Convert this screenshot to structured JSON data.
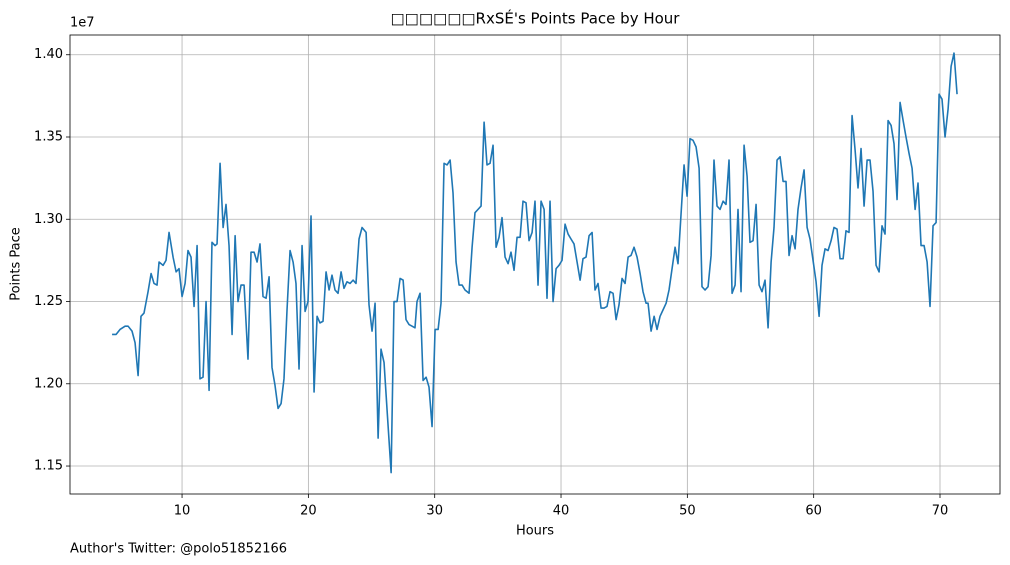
{
  "chart_data": {
    "type": "line",
    "title": "□□□□□□RxSÉ's Points Pace by Hour",
    "x_label": "Hours",
    "y_label": "Points Pace",
    "y_offset_label": "1e7",
    "footer": "Author's Twitter: @polo51852166",
    "grid": true,
    "color": "#1f77b4",
    "xlim": [
      1.13,
      74.75
    ],
    "ylim": [
      1.133,
      1.412
    ],
    "xticks": [
      10,
      20,
      30,
      40,
      50,
      60,
      70
    ],
    "yticks": [
      {
        "value": 1.15,
        "label": "1.15"
      },
      {
        "value": 1.2,
        "label": "1.20"
      },
      {
        "value": 1.25,
        "label": "1.25"
      },
      {
        "value": 1.3,
        "label": "1.30"
      },
      {
        "value": 1.35,
        "label": "1.35"
      },
      {
        "value": 1.4,
        "label": "1.40"
      }
    ],
    "x": [
      4.46,
      4.78,
      5.09,
      5.49,
      5.73,
      6.04,
      6.28,
      6.52,
      6.75,
      6.99,
      7.31,
      7.55,
      7.78,
      8.02,
      8.18,
      8.5,
      8.73,
      8.97,
      9.29,
      9.53,
      9.76,
      10.0,
      10.24,
      10.47,
      10.71,
      10.95,
      11.19,
      11.42,
      11.66,
      11.9,
      12.14,
      12.37,
      12.61,
      12.77,
      13.01,
      13.25,
      13.48,
      13.72,
      13.96,
      14.2,
      14.43,
      14.67,
      14.91,
      15.22,
      15.46,
      15.7,
      15.94,
      16.17,
      16.41,
      16.65,
      16.89,
      17.12,
      17.36,
      17.6,
      17.84,
      18.07,
      18.31,
      18.55,
      18.79,
      19.02,
      19.26,
      19.5,
      19.74,
      19.97,
      20.21,
      20.45,
      20.69,
      20.92,
      21.16,
      21.4,
      21.64,
      21.87,
      22.11,
      22.35,
      22.59,
      22.82,
      23.06,
      23.3,
      23.54,
      23.77,
      24.01,
      24.25,
      24.57,
      24.8,
      25.04,
      25.28,
      25.52,
      25.75,
      25.99,
      26.23,
      26.55,
      26.78,
      27.02,
      27.26,
      27.5,
      27.73,
      27.97,
      28.21,
      28.44,
      28.6,
      28.84,
      29.08,
      29.32,
      29.55,
      29.79,
      30.03,
      30.27,
      30.5,
      30.74,
      30.98,
      31.22,
      31.45,
      31.69,
      31.93,
      32.17,
      32.4,
      32.72,
      32.96,
      33.19,
      33.43,
      33.67,
      33.91,
      34.14,
      34.38,
      34.62,
      34.86,
      35.09,
      35.33,
      35.57,
      35.81,
      36.04,
      36.28,
      36.52,
      36.76,
      36.99,
      37.23,
      37.47,
      37.71,
      37.94,
      38.18,
      38.42,
      38.66,
      38.89,
      39.13,
      39.37,
      39.61,
      39.84,
      40.08,
      40.32,
      40.56,
      40.79,
      41.03,
      41.27,
      41.51,
      41.74,
      41.98,
      42.22,
      42.46,
      42.69,
      42.93,
      43.17,
      43.41,
      43.64,
      43.88,
      44.12,
      44.36,
      44.59,
      44.83,
      45.07,
      45.31,
      45.54,
      45.78,
      46.02,
      46.26,
      46.49,
      46.73,
      46.89,
      47.13,
      47.37,
      47.6,
      47.84,
      48.08,
      48.32,
      48.55,
      48.79,
      49.03,
      49.26,
      49.5,
      49.74,
      49.98,
      50.21,
      50.45,
      50.69,
      50.93,
      51.16,
      51.4,
      51.64,
      51.88,
      52.11,
      52.35,
      52.59,
      52.83,
      53.06,
      53.3,
      53.54,
      53.78,
      54.01,
      54.25,
      54.49,
      54.73,
      54.96,
      55.2,
      55.44,
      55.68,
      55.91,
      56.15,
      56.39,
      56.63,
      56.86,
      57.1,
      57.34,
      57.58,
      57.81,
      58.05,
      58.29,
      58.53,
      58.76,
      59.0,
      59.24,
      59.48,
      59.71,
      59.95,
      60.19,
      60.43,
      60.66,
      60.9,
      61.14,
      61.38,
      61.61,
      61.85,
      62.09,
      62.33,
      62.56,
      62.8,
      63.04,
      63.28,
      63.51,
      63.75,
      63.99,
      64.23,
      64.46,
      64.7,
      64.94,
      65.18,
      65.41,
      65.65,
      65.89,
      66.13,
      66.36,
      66.6,
      66.84,
      67.08,
      67.31,
      67.55,
      67.79,
      68.03,
      68.26,
      68.5,
      68.74,
      68.98,
      69.21,
      69.45,
      69.69,
      69.93,
      70.16,
      70.4,
      70.64,
      70.88,
      71.11,
      71.35
    ],
    "values": [
      1.23,
      1.23,
      1.233,
      1.235,
      1.235,
      1.232,
      1.225,
      1.205,
      1.241,
      1.243,
      1.256,
      1.267,
      1.261,
      1.26,
      1.274,
      1.272,
      1.275,
      1.292,
      1.277,
      1.268,
      1.27,
      1.253,
      1.261,
      1.281,
      1.277,
      1.247,
      1.284,
      1.203,
      1.204,
      1.25,
      1.196,
      1.286,
      1.284,
      1.285,
      1.334,
      1.295,
      1.309,
      1.284,
      1.23,
      1.29,
      1.25,
      1.26,
      1.26,
      1.215,
      1.28,
      1.28,
      1.274,
      1.285,
      1.253,
      1.252,
      1.265,
      1.21,
      1.199,
      1.185,
      1.188,
      1.203,
      1.245,
      1.281,
      1.274,
      1.261,
      1.209,
      1.284,
      1.244,
      1.25,
      1.302,
      1.195,
      1.241,
      1.237,
      1.238,
      1.268,
      1.257,
      1.266,
      1.257,
      1.255,
      1.268,
      1.258,
      1.262,
      1.261,
      1.263,
      1.261,
      1.288,
      1.295,
      1.292,
      1.248,
      1.232,
      1.249,
      1.167,
      1.221,
      1.213,
      1.184,
      1.146,
      1.25,
      1.25,
      1.264,
      1.263,
      1.239,
      1.236,
      1.235,
      1.234,
      1.25,
      1.255,
      1.202,
      1.204,
      1.198,
      1.174,
      1.233,
      1.233,
      1.249,
      1.334,
      1.333,
      1.336,
      1.316,
      1.274,
      1.26,
      1.26,
      1.257,
      1.255,
      1.283,
      1.304,
      1.306,
      1.308,
      1.359,
      1.333,
      1.334,
      1.345,
      1.283,
      1.289,
      1.301,
      1.277,
      1.273,
      1.28,
      1.269,
      1.289,
      1.289,
      1.311,
      1.31,
      1.287,
      1.292,
      1.311,
      1.26,
      1.311,
      1.306,
      1.252,
      1.311,
      1.25,
      1.27,
      1.272,
      1.275,
      1.297,
      1.291,
      1.288,
      1.285,
      1.274,
      1.263,
      1.276,
      1.277,
      1.29,
      1.292,
      1.257,
      1.261,
      1.246,
      1.246,
      1.247,
      1.256,
      1.255,
      1.239,
      1.248,
      1.264,
      1.261,
      1.277,
      1.278,
      1.283,
      1.277,
      1.267,
      1.256,
      1.249,
      1.249,
      1.232,
      1.241,
      1.233,
      1.241,
      1.245,
      1.249,
      1.257,
      1.27,
      1.283,
      1.273,
      1.303,
      1.333,
      1.314,
      1.349,
      1.348,
      1.344,
      1.331,
      1.259,
      1.257,
      1.259,
      1.278,
      1.336,
      1.308,
      1.306,
      1.311,
      1.309,
      1.336,
      1.255,
      1.26,
      1.306,
      1.256,
      1.345,
      1.326,
      1.286,
      1.287,
      1.309,
      1.26,
      1.256,
      1.263,
      1.234,
      1.274,
      1.295,
      1.336,
      1.338,
      1.323,
      1.323,
      1.278,
      1.29,
      1.282,
      1.306,
      1.319,
      1.33,
      1.295,
      1.288,
      1.275,
      1.262,
      1.241,
      1.272,
      1.282,
      1.281,
      1.287,
      1.295,
      1.294,
      1.276,
      1.276,
      1.293,
      1.292,
      1.363,
      1.342,
      1.319,
      1.343,
      1.308,
      1.336,
      1.336,
      1.317,
      1.272,
      1.268,
      1.296,
      1.291,
      1.36,
      1.357,
      1.346,
      1.312,
      1.371,
      1.36,
      1.35,
      1.34,
      1.331,
      1.306,
      1.322,
      1.284,
      1.284,
      1.274,
      1.247,
      1.296,
      1.298,
      1.376,
      1.373,
      1.35,
      1.367,
      1.393,
      1.401,
      1.376
    ]
  }
}
